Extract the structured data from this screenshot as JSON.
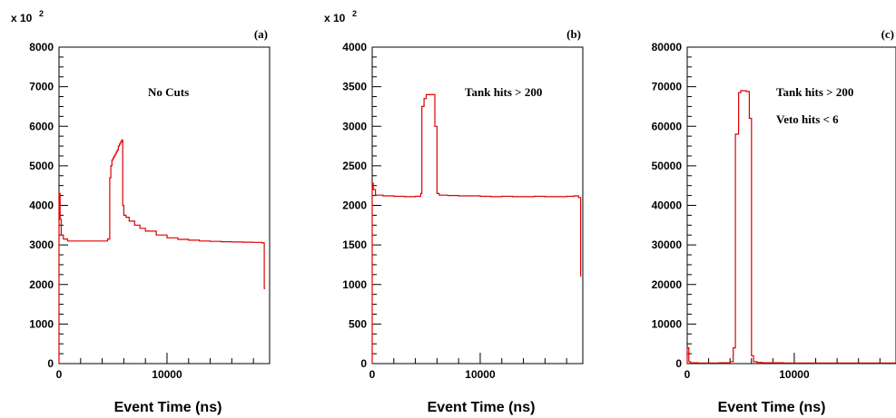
{
  "chart_data": [
    {
      "type": "line",
      "panel_label": "(a)",
      "annotations": [
        "No Cuts"
      ],
      "xlabel": "Event Time (ns)",
      "ylabel": "",
      "multiplier": "x 10",
      "multiplier_exp": "2",
      "xlim": [
        0,
        19500
      ],
      "ylim": [
        0,
        8000
      ],
      "xticks": [
        0,
        10000
      ],
      "yticks": [
        0,
        1000,
        2000,
        3000,
        4000,
        5000,
        6000,
        7000,
        8000
      ],
      "color": "#dd0000",
      "x": [
        0,
        100,
        200,
        400,
        800,
        1500,
        2500,
        3500,
        4500,
        4700,
        4800,
        4900,
        5000,
        5100,
        5200,
        5300,
        5400,
        5500,
        5600,
        5700,
        5800,
        5900,
        6000,
        6200,
        6500,
        7000,
        7500,
        8000,
        9000,
        10000,
        11000,
        12000,
        13000,
        14000,
        15000,
        16000,
        17000,
        18000,
        18800,
        19000,
        19100
      ],
      "y": [
        4300,
        3650,
        3250,
        3150,
        3100,
        3100,
        3100,
        3100,
        3150,
        4700,
        5000,
        5150,
        5200,
        5250,
        5300,
        5350,
        5400,
        5500,
        5550,
        5600,
        5650,
        4000,
        3750,
        3700,
        3600,
        3500,
        3420,
        3350,
        3250,
        3180,
        3140,
        3120,
        3100,
        3090,
        3080,
        3075,
        3070,
        3065,
        3050,
        1900,
        1900
      ]
    },
    {
      "type": "line",
      "panel_label": "(b)",
      "annotations": [
        "Tank hits > 200"
      ],
      "xlabel": "Event Time (ns)",
      "ylabel": "",
      "multiplier": "x 10",
      "multiplier_exp": "2",
      "xlim": [
        0,
        19500
      ],
      "ylim": [
        0,
        4000
      ],
      "xticks": [
        0,
        10000
      ],
      "yticks": [
        0,
        500,
        1000,
        1500,
        2000,
        2500,
        3000,
        3500,
        4000
      ],
      "color": "#dd0000",
      "x": [
        0,
        100,
        300,
        1000,
        2000,
        3000,
        4000,
        4500,
        4600,
        4800,
        5000,
        5200,
        5500,
        5800,
        6000,
        6200,
        7000,
        8000,
        9000,
        10000,
        11000,
        12000,
        13000,
        14000,
        15000,
        16000,
        17000,
        18000,
        18700,
        19100,
        19300
      ],
      "y": [
        2280,
        2200,
        2130,
        2120,
        2115,
        2110,
        2115,
        2150,
        3250,
        3350,
        3400,
        3400,
        3400,
        3000,
        2150,
        2130,
        2125,
        2120,
        2120,
        2115,
        2110,
        2115,
        2110,
        2110,
        2115,
        2110,
        2110,
        2115,
        2120,
        2100,
        1100
      ]
    },
    {
      "type": "line",
      "panel_label": "(c)",
      "annotations": [
        "Tank hits > 200",
        "Veto hits < 6"
      ],
      "xlabel": "Event Time (ns)",
      "ylabel": "",
      "multiplier": "",
      "multiplier_exp": "",
      "xlim": [
        0,
        19500
      ],
      "ylim": [
        0,
        80000
      ],
      "xticks": [
        0,
        10000
      ],
      "yticks": [
        0,
        10000,
        20000,
        30000,
        40000,
        50000,
        60000,
        70000,
        80000
      ],
      "color": "#dd0000",
      "x": [
        0,
        150,
        300,
        1000,
        2000,
        3000,
        4000,
        4300,
        4500,
        4800,
        5000,
        5200,
        5500,
        5800,
        6000,
        6200,
        6500,
        7000,
        9000,
        12000,
        15000,
        18000,
        19500
      ],
      "y": [
        4000,
        500,
        200,
        150,
        150,
        200,
        500,
        4000,
        58000,
        68500,
        69000,
        69000,
        68800,
        62000,
        2000,
        500,
        300,
        200,
        150,
        150,
        150,
        150,
        150
      ]
    }
  ]
}
